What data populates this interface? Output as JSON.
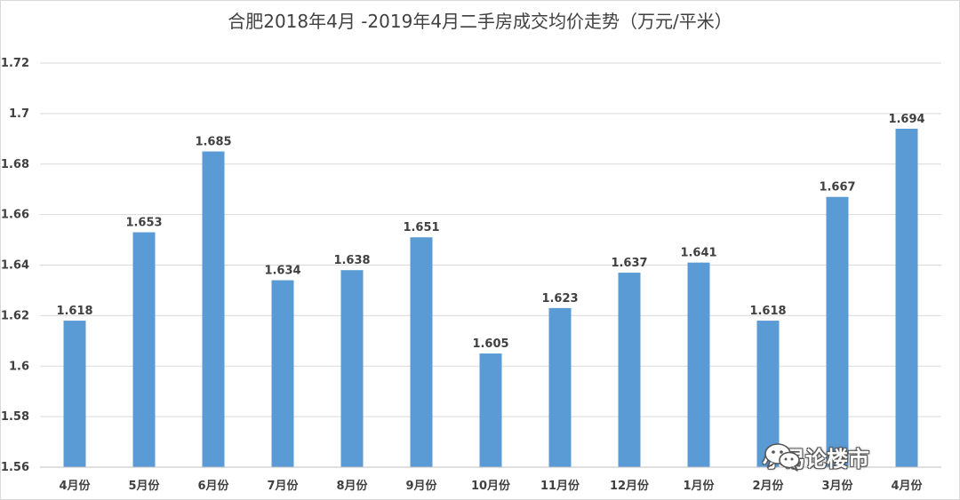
{
  "chart_data": {
    "type": "bar",
    "title": "合肥2018年4月 -2019年4月二手房成交均价走势（万元/平米）",
    "categories": [
      "4月份",
      "5月份",
      "6月份",
      "7月份",
      "8月份",
      "9月份",
      "10月份",
      "11月份",
      "12月份",
      "1月份",
      "2月份",
      "3月份",
      "4月份"
    ],
    "values": [
      1.618,
      1.653,
      1.685,
      1.634,
      1.638,
      1.651,
      1.605,
      1.623,
      1.637,
      1.641,
      1.618,
      1.667,
      1.694
    ],
    "value_labels": [
      "1.618",
      "1.653",
      "1.685",
      "1.634",
      "1.638",
      "1.651",
      "1.605",
      "1.623",
      "1.637",
      "1.641",
      "1.618",
      "1.667",
      "1.694"
    ],
    "y_ticks": [
      "1.56",
      "1.58",
      "1.6",
      "1.62",
      "1.64",
      "1.66",
      "1.68",
      "1.7",
      "1.72"
    ],
    "ylim": [
      1.56,
      1.72
    ],
    "grid": true,
    "bar_color": "#5b9bd5"
  },
  "watermark": {
    "text": "小易论楼市",
    "icon": "wechat-icon"
  }
}
